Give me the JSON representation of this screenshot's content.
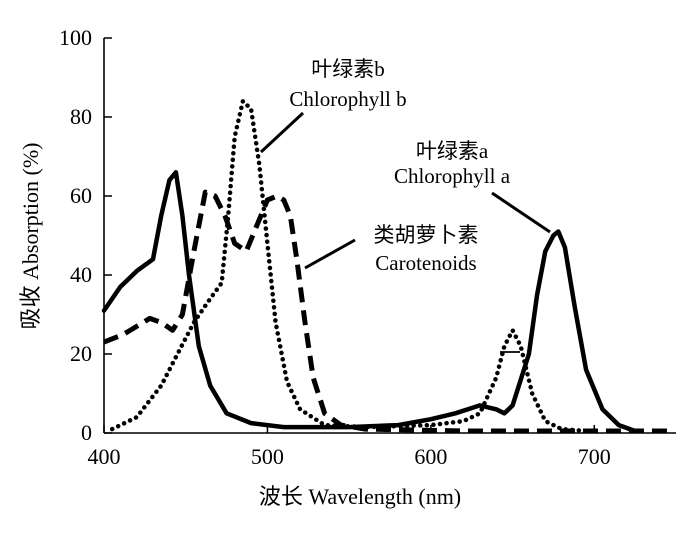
{
  "chart_data": {
    "type": "line",
    "xlabel": "波长 Wavelength (nm)",
    "ylabel": "吸收 Absorption (%)",
    "xlim": [
      400,
      750
    ],
    "ylim": [
      0,
      100
    ],
    "x_ticks": [
      400,
      500,
      600,
      700
    ],
    "y_ticks": [
      0,
      20,
      40,
      60,
      80,
      100
    ],
    "grid": false,
    "annotations": [
      {
        "series": "chlorophyll_b",
        "lines": [
          "叶绿素b",
          "Chlorophyll b"
        ]
      },
      {
        "series": "chlorophyll_a",
        "lines": [
          "叶绿素a",
          "Chlorophyll a"
        ]
      },
      {
        "series": "carotenoids",
        "lines": [
          "类胡萝卜素",
          "Carotenoids"
        ]
      }
    ],
    "series": [
      {
        "id": "chlorophyll_a",
        "style": "solid",
        "points": [
          [
            400,
            31
          ],
          [
            410,
            37
          ],
          [
            420,
            41
          ],
          [
            430,
            44
          ],
          [
            435,
            55
          ],
          [
            440,
            64
          ],
          [
            444,
            66
          ],
          [
            448,
            55
          ],
          [
            452,
            40
          ],
          [
            458,
            22
          ],
          [
            465,
            12
          ],
          [
            475,
            5
          ],
          [
            490,
            2.5
          ],
          [
            510,
            1.5
          ],
          [
            550,
            1.5
          ],
          [
            580,
            2
          ],
          [
            600,
            3.5
          ],
          [
            615,
            5
          ],
          [
            630,
            7
          ],
          [
            640,
            6
          ],
          [
            645,
            5
          ],
          [
            650,
            7
          ],
          [
            660,
            20
          ],
          [
            665,
            35
          ],
          [
            670,
            46
          ],
          [
            675,
            50
          ],
          [
            678,
            51
          ],
          [
            682,
            47
          ],
          [
            688,
            32
          ],
          [
            695,
            16
          ],
          [
            705,
            6
          ],
          [
            715,
            2
          ],
          [
            725,
            0.5
          ]
        ]
      },
      {
        "id": "chlorophyll_b",
        "style": "dotted",
        "points": [
          [
            405,
            1
          ],
          [
            420,
            4
          ],
          [
            435,
            12
          ],
          [
            445,
            20
          ],
          [
            455,
            28
          ],
          [
            465,
            34
          ],
          [
            472,
            38
          ],
          [
            476,
            55
          ],
          [
            480,
            75
          ],
          [
            485,
            84
          ],
          [
            490,
            82
          ],
          [
            495,
            68
          ],
          [
            500,
            48
          ],
          [
            505,
            28
          ],
          [
            512,
            13
          ],
          [
            520,
            6
          ],
          [
            535,
            2
          ],
          [
            560,
            1.5
          ],
          [
            600,
            2
          ],
          [
            620,
            3
          ],
          [
            630,
            5
          ],
          [
            640,
            14
          ],
          [
            645,
            22
          ],
          [
            650,
            26
          ],
          [
            655,
            22
          ],
          [
            662,
            10
          ],
          [
            670,
            3
          ],
          [
            680,
            1
          ],
          [
            695,
            0.5
          ]
        ]
      },
      {
        "id": "carotenoids",
        "style": "dashed",
        "points": [
          [
            400,
            23
          ],
          [
            412,
            25
          ],
          [
            420,
            27
          ],
          [
            428,
            29
          ],
          [
            435,
            28
          ],
          [
            442,
            26
          ],
          [
            448,
            30
          ],
          [
            455,
            46
          ],
          [
            462,
            61
          ],
          [
            468,
            60
          ],
          [
            474,
            55
          ],
          [
            480,
            48
          ],
          [
            487,
            46
          ],
          [
            493,
            52
          ],
          [
            500,
            59
          ],
          [
            506,
            60
          ],
          [
            510,
            59
          ],
          [
            514,
            55
          ],
          [
            518,
            44
          ],
          [
            523,
            28
          ],
          [
            528,
            14
          ],
          [
            535,
            5
          ],
          [
            545,
            2
          ],
          [
            560,
            1
          ],
          [
            620,
            0.5
          ],
          [
            680,
            0.5
          ],
          [
            748,
            0.5
          ]
        ]
      }
    ]
  }
}
